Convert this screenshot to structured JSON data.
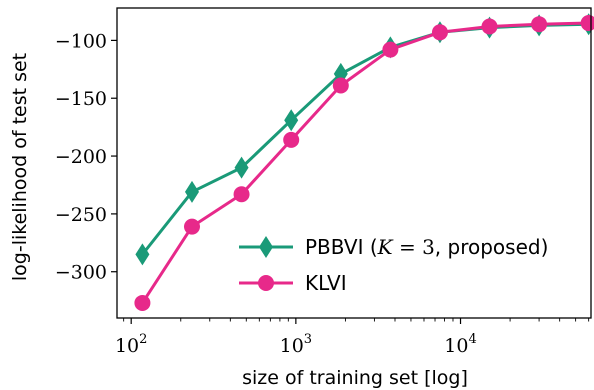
{
  "chart_data": {
    "type": "line",
    "xlabel": "size of training set [log]",
    "ylabel": "log-likelihood of test set",
    "xscale": "log",
    "xlim": [
      82,
      62000
    ],
    "ylim": [
      -340,
      -72
    ],
    "x_ticks": [
      100,
      1000,
      10000
    ],
    "x_tick_labels": [
      {
        "base": "10",
        "exp": "2"
      },
      {
        "base": "10",
        "exp": "3"
      },
      {
        "base": "10",
        "exp": "4"
      }
    ],
    "y_ticks": [
      -300,
      -250,
      -200,
      -150,
      -100
    ],
    "y_tick_labels": [
      "−300",
      "−250",
      "−200",
      "−150",
      "−100"
    ],
    "legend_position": "lower-right",
    "grid": false,
    "series": [
      {
        "name": "PBBVI (K = 3, proposed)",
        "legend_parts": {
          "prefix": "PBBVI (",
          "var": "K",
          "eq": " = 3",
          "suffix": ", proposed)"
        },
        "color": "#1a9a78",
        "marker": "thin-diamond",
        "x": [
          117,
          234,
          468,
          937,
          1875,
          3750,
          7500,
          15000,
          30000,
          60000
        ],
        "y": [
          -285,
          -231,
          -210,
          -169,
          -129,
          -106,
          -93,
          -89,
          -87,
          -86
        ]
      },
      {
        "name": "KLVI",
        "legend_parts": {
          "prefix": "KLVI",
          "var": "",
          "eq": "",
          "suffix": ""
        },
        "color": "#e7298a",
        "marker": "circle",
        "x": [
          117,
          234,
          468,
          937,
          1875,
          3750,
          7500,
          15000,
          30000,
          60000
        ],
        "y": [
          -327,
          -261,
          -233,
          -186,
          -139,
          -108,
          -93,
          -88,
          -86,
          -85
        ]
      }
    ]
  }
}
